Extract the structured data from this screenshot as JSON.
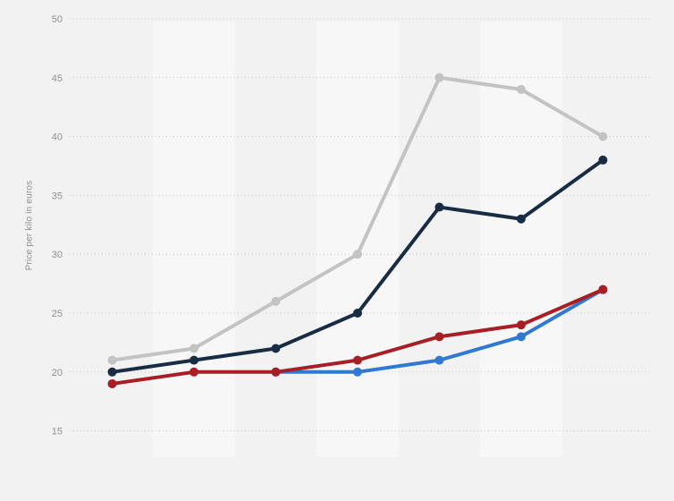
{
  "page": {
    "background_color": "#f2f2f2",
    "band_color": "#f7f7f7",
    "gridline_color": "#c9c9c9",
    "tick_label_color": "#909090"
  },
  "chart_data": {
    "type": "line",
    "title": "",
    "xlabel": "",
    "ylabel": "Price per kilo in euros",
    "x_tick_labels_visible": false,
    "categories": [
      "",
      "",
      "",
      "",
      "",
      "",
      ""
    ],
    "series": [
      {
        "name": "light-gray-series",
        "color": "#c3c3c3",
        "values": [
          21,
          22,
          26,
          30,
          45,
          44,
          40
        ]
      },
      {
        "name": "dark-blue-series",
        "color": "#182c44",
        "values": [
          20,
          21,
          22,
          25,
          34,
          33,
          38
        ]
      },
      {
        "name": "light-blue-series",
        "color": "#3079d2",
        "values": [
          null,
          null,
          20,
          20,
          21,
          23,
          27
        ]
      },
      {
        "name": "dark-red-series",
        "color": "#a81e24",
        "values": [
          19,
          20,
          20,
          21,
          23,
          24,
          27
        ]
      }
    ],
    "yticks": [
      50,
      45,
      40,
      35,
      30,
      25,
      20,
      15
    ],
    "ylim": [
      12.5,
      50
    ],
    "grid": "horizontal-dotted",
    "legend": "none",
    "plot_bands": "alternating vertical bands behind even data columns"
  }
}
